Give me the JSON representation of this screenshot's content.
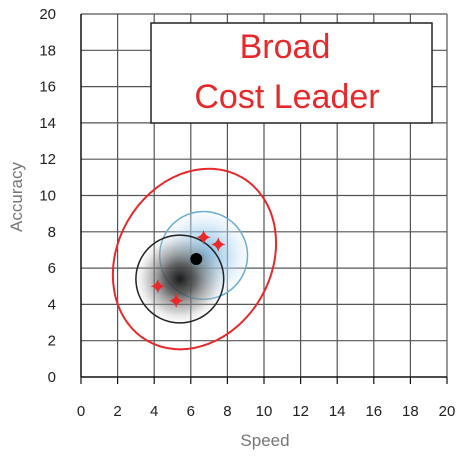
{
  "chart_data": {
    "type": "scatter",
    "title_lines": [
      "Broad",
      "Cost Leader"
    ],
    "xlabel": "Speed",
    "ylabel": "Accuracy",
    "xlim": [
      0,
      20
    ],
    "ylim": [
      0,
      20
    ],
    "xticks": [
      "0",
      "2",
      "4",
      "6",
      "8",
      "10",
      "12",
      "14",
      "16",
      "18",
      "20"
    ],
    "yticks": [
      "0",
      "2",
      "4",
      "6",
      "8",
      "10",
      "12",
      "14",
      "16",
      "18",
      "20"
    ],
    "grid": true,
    "colors": {
      "grid": "#555555",
      "axis": "#111111",
      "ellipse": "#e8282a",
      "star": "#e8282a",
      "dark_circle": "#222222",
      "blue_circle": "#6aaed6",
      "blue_fill": "#cfe6f5",
      "point": "#000000",
      "title_box": "#222222"
    },
    "regions": [
      {
        "kind": "ellipse",
        "cx": 6.2,
        "cy": 6.5,
        "rx": 4.2,
        "ry": 5.2,
        "rotation_deg": 30,
        "style": "red-outline"
      },
      {
        "kind": "circle",
        "cx": 6.7,
        "cy": 6.7,
        "r": 2.4,
        "style": "blue-gradient"
      },
      {
        "kind": "circle",
        "cx": 5.4,
        "cy": 5.4,
        "r": 2.4,
        "style": "dark-gradient"
      }
    ],
    "center_point": {
      "x": 6.3,
      "y": 6.5
    },
    "stars": [
      {
        "x": 6.7,
        "y": 7.7
      },
      {
        "x": 7.5,
        "y": 7.3
      },
      {
        "x": 4.2,
        "y": 5.0
      },
      {
        "x": 5.2,
        "y": 4.2
      }
    ]
  }
}
